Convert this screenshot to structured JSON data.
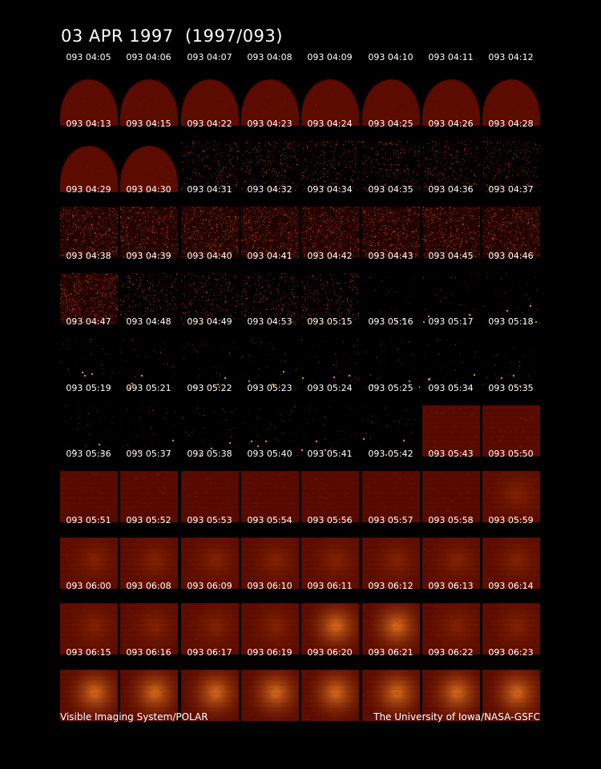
{
  "title": "03 APR 1997  (1997/093)",
  "footer": {
    "left": "Visible Imaging System/POLAR",
    "right": "The University of Iowa/NASA-GSFC"
  },
  "colors": {
    "background": "#000000",
    "image_base": "#5a0a00",
    "image_bright": "#ff9a30"
  },
  "frames": [
    {
      "label": "093 04:05",
      "kind": "dome"
    },
    {
      "label": "093 04:06",
      "kind": "dome"
    },
    {
      "label": "093 04:07",
      "kind": "dome"
    },
    {
      "label": "093 04:08",
      "kind": "dome"
    },
    {
      "label": "093 04:09",
      "kind": "dome"
    },
    {
      "label": "093 04:10",
      "kind": "dome"
    },
    {
      "label": "093 04:11",
      "kind": "dome"
    },
    {
      "label": "093 04:12",
      "kind": "dome"
    },
    {
      "label": "093 04:13",
      "kind": "dome"
    },
    {
      "label": "093 04:15",
      "kind": "dome"
    },
    {
      "label": "093 04:22",
      "kind": "speckle-dark"
    },
    {
      "label": "093 04:23",
      "kind": "speckle-dark"
    },
    {
      "label": "093 04:24",
      "kind": "speckle-dark"
    },
    {
      "label": "093 04:25",
      "kind": "speckle-dark"
    },
    {
      "label": "093 04:26",
      "kind": "speckle-dark"
    },
    {
      "label": "093 04:28",
      "kind": "speckle-dark"
    },
    {
      "label": "093 04:29",
      "kind": "speckle"
    },
    {
      "label": "093 04:30",
      "kind": "speckle"
    },
    {
      "label": "093 04:31",
      "kind": "speckle"
    },
    {
      "label": "093 04:32",
      "kind": "speckle"
    },
    {
      "label": "093 04:34",
      "kind": "speckle"
    },
    {
      "label": "093 04:35",
      "kind": "speckle"
    },
    {
      "label": "093 04:36",
      "kind": "speckle"
    },
    {
      "label": "093 04:37",
      "kind": "speckle"
    },
    {
      "label": "093 04:38",
      "kind": "speckle"
    },
    {
      "label": "093 04:39",
      "kind": "speckle-dark"
    },
    {
      "label": "093 04:40",
      "kind": "speckle-dark"
    },
    {
      "label": "093 04:41",
      "kind": "speckle-dark"
    },
    {
      "label": "093 04:42",
      "kind": "speckle-dark"
    },
    {
      "label": "093 04:43",
      "kind": "sparse"
    },
    {
      "label": "093 04:45",
      "kind": "sparse"
    },
    {
      "label": "093 04:46",
      "kind": "sparse"
    },
    {
      "label": "093 04:47",
      "kind": "sparse"
    },
    {
      "label": "093 04:48",
      "kind": "sparse"
    },
    {
      "label": "093 04:49",
      "kind": "sparse"
    },
    {
      "label": "093 04:53",
      "kind": "sparse"
    },
    {
      "label": "093 05:15",
      "kind": "sparse"
    },
    {
      "label": "093 05:16",
      "kind": "sparse"
    },
    {
      "label": "093 05:17",
      "kind": "sparse"
    },
    {
      "label": "093 05:18",
      "kind": "sparse"
    },
    {
      "label": "093 05:19",
      "kind": "sparse"
    },
    {
      "label": "093 05:21",
      "kind": "sparse"
    },
    {
      "label": "093 05:22",
      "kind": "sparse"
    },
    {
      "label": "093 05:23",
      "kind": "sparse"
    },
    {
      "label": "093 05:24",
      "kind": "sparse"
    },
    {
      "label": "093 05:25",
      "kind": "sparse"
    },
    {
      "label": "093 05:34",
      "kind": "flat"
    },
    {
      "label": "093 05:35",
      "kind": "flat"
    },
    {
      "label": "093 05:36",
      "kind": "flat"
    },
    {
      "label": "093 05:37",
      "kind": "flat"
    },
    {
      "label": "093 05:38",
      "kind": "flat"
    },
    {
      "label": "093 05:40",
      "kind": "flat"
    },
    {
      "label": "093 05:41",
      "kind": "flat"
    },
    {
      "label": "093 05:42",
      "kind": "flat"
    },
    {
      "label": "093 05:43",
      "kind": "flat"
    },
    {
      "label": "093 05:50",
      "kind": "glow"
    },
    {
      "label": "093 05:51",
      "kind": "glow"
    },
    {
      "label": "093 05:52",
      "kind": "glow"
    },
    {
      "label": "093 05:53",
      "kind": "glow"
    },
    {
      "label": "093 05:54",
      "kind": "glow"
    },
    {
      "label": "093 05:56",
      "kind": "glow"
    },
    {
      "label": "093 05:57",
      "kind": "glow"
    },
    {
      "label": "093 05:58",
      "kind": "glow"
    },
    {
      "label": "093 05:59",
      "kind": "glow"
    },
    {
      "label": "093 06:00",
      "kind": "glow"
    },
    {
      "label": "093 06:08",
      "kind": "glow"
    },
    {
      "label": "093 06:09",
      "kind": "glow"
    },
    {
      "label": "093 06:10",
      "kind": "glow"
    },
    {
      "label": "093 06:11",
      "kind": "bright"
    },
    {
      "label": "093 06:12",
      "kind": "bright"
    },
    {
      "label": "093 06:13",
      "kind": "glow"
    },
    {
      "label": "093 06:14",
      "kind": "glow"
    },
    {
      "label": "093 06:15",
      "kind": "bright"
    },
    {
      "label": "093 06:16",
      "kind": "bright"
    },
    {
      "label": "093 06:17",
      "kind": "bright"
    },
    {
      "label": "093 06:19",
      "kind": "bright"
    },
    {
      "label": "093 06:20",
      "kind": "bright"
    },
    {
      "label": "093 06:21",
      "kind": "bright"
    },
    {
      "label": "093 06:22",
      "kind": "bright"
    },
    {
      "label": "093 06:23",
      "kind": "bright"
    }
  ]
}
